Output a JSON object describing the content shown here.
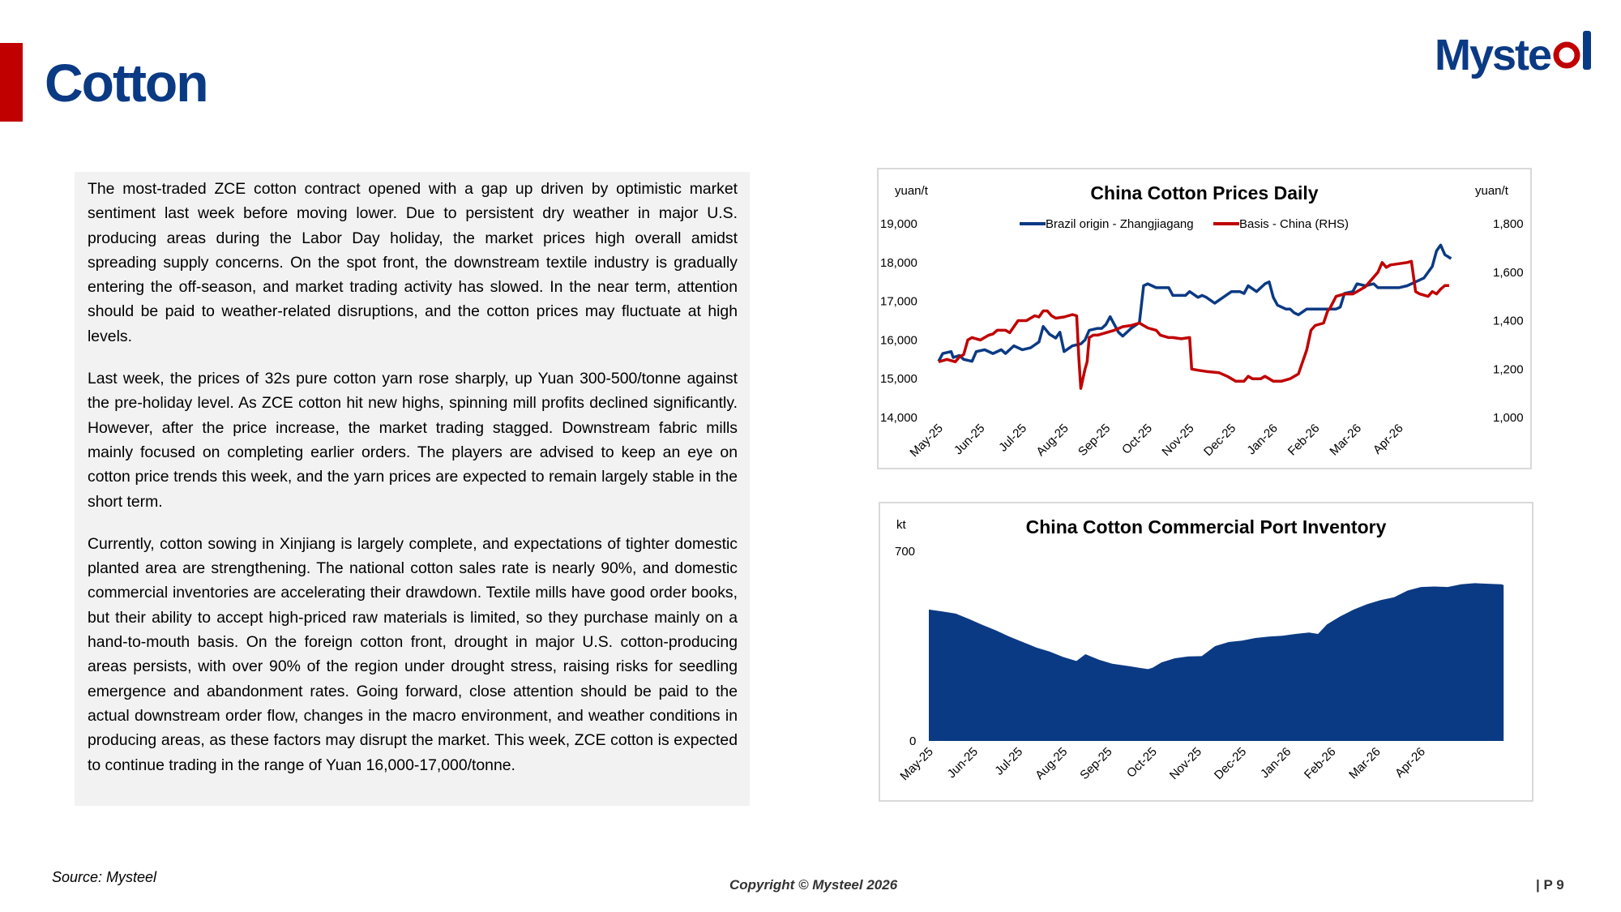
{
  "header": {
    "title": "Cotton",
    "logo_text": "Mysteel",
    "brand_color": "#0b3a84",
    "accent_color": "#c00000"
  },
  "commentary": {
    "paragraphs": [
      "The most-traded ZCE cotton contract opened with a gap up driven by optimistic market sentiment last week before moving lower. Due to persistent dry weather in major U.S. producing areas during the Labor Day holiday, the market prices high overall amidst spreading supply concerns. On the spot front, the downstream textile industry is gradually entering the off-season, and market trading activity has slowed. In the near term, attention should be paid to weather-related disruptions, and the cotton prices may fluctuate at high levels.",
      "Last week, the prices of 32s pure cotton yarn rose sharply, up Yuan 300-500/tonne against the pre-holiday level. As ZCE cotton hit new highs, spinning mill profits declined significantly. However, after the price increase, the market trading stagged. Downstream fabric mills mainly focused on completing earlier orders. The players are advised to keep an eye on cotton price trends this week, and the yarn prices are expected to remain largely stable in the short term.",
      "Currently, cotton sowing in Xinjiang is largely complete, and expectations of tighter domestic planted area are strengthening. The national cotton sales rate is nearly 90%, and domestic commercial inventories are accelerating their drawdown. Textile mills have good order books, but their ability to accept high-priced raw materials is limited, so they purchase mainly on a hand-to-mouth basis. On the foreign cotton front, drought in major U.S. cotton-producing areas persists, with over 90% of the region under drought stress, raising risks for seedling emergence and abandonment rates. Going forward, close attention should be paid to the actual downstream order flow, changes in the macro environment, and weather conditions in producing areas, as these factors may disrupt the market. This week, ZCE cotton is expected to continue trading in the range of Yuan 16,000-17,000/tonne."
    ]
  },
  "chart_data": [
    {
      "type": "line",
      "title": "China Cotton Prices Daily",
      "y_left_label": "yuan/t",
      "y_right_label": "yuan/t",
      "y_left_ticks": [
        "19,000",
        "18,000",
        "17,000",
        "16,000",
        "15,000",
        "14,000"
      ],
      "y_right_ticks": [
        "1,800",
        "1,600",
        "1,400",
        "1,200",
        "1,000"
      ],
      "ylim_left": [
        14000,
        19000
      ],
      "ylim_right": [
        1000,
        1800
      ],
      "x_labels": [
        "May-25",
        "Jun-25",
        "Jul-25",
        "Aug-25",
        "Sep-25",
        "Oct-25",
        "Nov-25",
        "Dec-25",
        "Jan-26",
        "Feb-26",
        "Mar-26",
        "Apr-26"
      ],
      "x_range": [
        0,
        12.9
      ],
      "legend_position": "top",
      "grid": false,
      "series": [
        {
          "name": "Brazil origin - Zhangjiagang",
          "color": "#0b3a84",
          "axis": "left",
          "points": [
            [
              0,
              15450
            ],
            [
              0.1,
              15650
            ],
            [
              0.3,
              15700
            ],
            [
              0.35,
              15550
            ],
            [
              0.5,
              15600
            ],
            [
              0.6,
              15500
            ],
            [
              0.8,
              15450
            ],
            [
              0.9,
              15700
            ],
            [
              1.1,
              15750
            ],
            [
              1.3,
              15650
            ],
            [
              1.5,
              15750
            ],
            [
              1.6,
              15650
            ],
            [
              1.8,
              15850
            ],
            [
              2.0,
              15750
            ],
            [
              2.2,
              15800
            ],
            [
              2.4,
              15950
            ],
            [
              2.5,
              16350
            ],
            [
              2.65,
              16150
            ],
            [
              2.8,
              16050
            ],
            [
              2.9,
              16200
            ],
            [
              3.0,
              15700
            ],
            [
              3.2,
              15850
            ],
            [
              3.4,
              15900
            ],
            [
              3.5,
              16000
            ],
            [
              3.6,
              16250
            ],
            [
              3.8,
              16300
            ],
            [
              3.9,
              16300
            ],
            [
              4.0,
              16400
            ],
            [
              4.1,
              16600
            ],
            [
              4.3,
              16200
            ],
            [
              4.4,
              16100
            ],
            [
              4.6,
              16300
            ],
            [
              4.8,
              16450
            ],
            [
              4.9,
              17400
            ],
            [
              5.0,
              17450
            ],
            [
              5.2,
              17350
            ],
            [
              5.5,
              17350
            ],
            [
              5.6,
              17150
            ],
            [
              5.9,
              17150
            ],
            [
              6.0,
              17250
            ],
            [
              6.2,
              17100
            ],
            [
              6.3,
              17150
            ],
            [
              6.4,
              17100
            ],
            [
              6.6,
              16950
            ],
            [
              6.8,
              17100
            ],
            [
              7.0,
              17250
            ],
            [
              7.2,
              17250
            ],
            [
              7.3,
              17200
            ],
            [
              7.4,
              17400
            ],
            [
              7.6,
              17250
            ],
            [
              7.8,
              17450
            ],
            [
              7.9,
              17500
            ],
            [
              8.0,
              17100
            ],
            [
              8.1,
              16900
            ],
            [
              8.3,
              16800
            ],
            [
              8.4,
              16800
            ],
            [
              8.5,
              16700
            ],
            [
              8.6,
              16650
            ],
            [
              8.8,
              16800
            ],
            [
              9.0,
              16800
            ],
            [
              9.3,
              16800
            ],
            [
              9.5,
              16800
            ],
            [
              9.6,
              16850
            ],
            [
              9.7,
              17200
            ],
            [
              9.9,
              17250
            ],
            [
              10.0,
              17450
            ],
            [
              10.2,
              17400
            ],
            [
              10.4,
              17450
            ],
            [
              10.5,
              17350
            ],
            [
              10.8,
              17350
            ],
            [
              11.0,
              17350
            ],
            [
              11.2,
              17400
            ],
            [
              11.4,
              17500
            ],
            [
              11.6,
              17600
            ],
            [
              11.8,
              17900
            ],
            [
              11.9,
              18300
            ],
            [
              12.0,
              18450
            ],
            [
              12.1,
              18200
            ],
            [
              12.25,
              18100
            ]
          ]
        },
        {
          "name": "Basis - China (RHS)",
          "color": "#c00000",
          "axis": "right",
          "points": [
            [
              0,
              1230
            ],
            [
              0.2,
              1240
            ],
            [
              0.4,
              1230
            ],
            [
              0.5,
              1250
            ],
            [
              0.6,
              1260
            ],
            [
              0.7,
              1320
            ],
            [
              0.8,
              1330
            ],
            [
              1.0,
              1320
            ],
            [
              1.2,
              1340
            ],
            [
              1.3,
              1345
            ],
            [
              1.4,
              1360
            ],
            [
              1.6,
              1360
            ],
            [
              1.7,
              1350
            ],
            [
              1.9,
              1400
            ],
            [
              2.1,
              1400
            ],
            [
              2.3,
              1420
            ],
            [
              2.4,
              1415
            ],
            [
              2.5,
              1440
            ],
            [
              2.6,
              1440
            ],
            [
              2.7,
              1420
            ],
            [
              2.8,
              1410
            ],
            [
              3.0,
              1415
            ],
            [
              3.2,
              1425
            ],
            [
              3.3,
              1420
            ],
            [
              3.35,
              1250
            ],
            [
              3.4,
              1120
            ],
            [
              3.5,
              1200
            ],
            [
              3.55,
              1230
            ],
            [
              3.6,
              1330
            ],
            [
              3.7,
              1340
            ],
            [
              3.8,
              1340
            ],
            [
              4.0,
              1350
            ],
            [
              4.2,
              1360
            ],
            [
              4.4,
              1375
            ],
            [
              4.6,
              1380
            ],
            [
              4.8,
              1390
            ],
            [
              5.0,
              1370
            ],
            [
              5.2,
              1360
            ],
            [
              5.3,
              1340
            ],
            [
              5.5,
              1330
            ],
            [
              5.6,
              1330
            ],
            [
              5.8,
              1325
            ],
            [
              6.0,
              1330
            ],
            [
              6.05,
              1200
            ],
            [
              6.2,
              1195
            ],
            [
              6.4,
              1190
            ],
            [
              6.7,
              1185
            ],
            [
              6.9,
              1170
            ],
            [
              7.0,
              1160
            ],
            [
              7.1,
              1150
            ],
            [
              7.3,
              1150
            ],
            [
              7.4,
              1170
            ],
            [
              7.5,
              1160
            ],
            [
              7.7,
              1160
            ],
            [
              7.8,
              1170
            ],
            [
              7.9,
              1160
            ],
            [
              8.0,
              1150
            ],
            [
              8.2,
              1150
            ],
            [
              8.4,
              1160
            ],
            [
              8.6,
              1180
            ],
            [
              8.7,
              1230
            ],
            [
              8.8,
              1280
            ],
            [
              8.9,
              1360
            ],
            [
              9.0,
              1380
            ],
            [
              9.2,
              1390
            ],
            [
              9.3,
              1440
            ],
            [
              9.35,
              1450
            ],
            [
              9.5,
              1500
            ],
            [
              9.7,
              1510
            ],
            [
              9.9,
              1510
            ],
            [
              10.0,
              1520
            ],
            [
              10.2,
              1540
            ],
            [
              10.3,
              1560
            ],
            [
              10.5,
              1600
            ],
            [
              10.6,
              1640
            ],
            [
              10.7,
              1620
            ],
            [
              10.8,
              1630
            ],
            [
              11.0,
              1635
            ],
            [
              11.2,
              1640
            ],
            [
              11.3,
              1645
            ],
            [
              11.4,
              1520
            ],
            [
              11.5,
              1510
            ],
            [
              11.7,
              1500
            ],
            [
              11.8,
              1520
            ],
            [
              11.9,
              1510
            ],
            [
              12.0,
              1530
            ],
            [
              12.1,
              1545
            ],
            [
              12.2,
              1545
            ]
          ]
        }
      ]
    },
    {
      "type": "area",
      "title": "China Cotton Commercial Port Inventory",
      "y_label": "kt",
      "y_ticks": [
        "700",
        "0"
      ],
      "ylim": [
        0,
        700
      ],
      "x_labels": [
        "May-25",
        "Jun-25",
        "Jul-25",
        "Aug-25",
        "Sep-25",
        "Oct-25",
        "Nov-25",
        "Dec-25",
        "Jan-26",
        "Feb-26",
        "Mar-26",
        "Apr-26"
      ],
      "x_range": [
        0,
        12.9
      ],
      "grid": false,
      "series": [
        {
          "name": "",
          "color": "#0b3a84",
          "points": [
            [
              0,
              485
            ],
            [
              0.3,
              478
            ],
            [
              0.6,
              470
            ],
            [
              0.9,
              450
            ],
            [
              1.2,
              428
            ],
            [
              1.5,
              408
            ],
            [
              1.8,
              385
            ],
            [
              2.1,
              365
            ],
            [
              2.4,
              345
            ],
            [
              2.7,
              330
            ],
            [
              3.0,
              310
            ],
            [
              3.3,
              295
            ],
            [
              3.5,
              320
            ],
            [
              3.8,
              300
            ],
            [
              4.1,
              285
            ],
            [
              4.4,
              278
            ],
            [
              4.7,
              270
            ],
            [
              4.9,
              265
            ],
            [
              5.0,
              270
            ],
            [
              5.2,
              290
            ],
            [
              5.5,
              305
            ],
            [
              5.8,
              312
            ],
            [
              6.1,
              313
            ],
            [
              6.4,
              350
            ],
            [
              6.7,
              365
            ],
            [
              7.0,
              370
            ],
            [
              7.3,
              380
            ],
            [
              7.6,
              385
            ],
            [
              7.9,
              388
            ],
            [
              8.2,
              395
            ],
            [
              8.5,
              400
            ],
            [
              8.7,
              395
            ],
            [
              8.9,
              430
            ],
            [
              9.2,
              460
            ],
            [
              9.5,
              485
            ],
            [
              9.8,
              505
            ],
            [
              10.1,
              520
            ],
            [
              10.4,
              530
            ],
            [
              10.7,
              555
            ],
            [
              11.0,
              568
            ],
            [
              11.3,
              570
            ],
            [
              11.6,
              568
            ],
            [
              11.9,
              578
            ],
            [
              12.2,
              582
            ],
            [
              12.5,
              580
            ],
            [
              12.8,
              578
            ],
            [
              12.85,
              575
            ]
          ]
        }
      ]
    }
  ],
  "footer": {
    "source": "Source: Mysteel",
    "copyright": "Copyright © Mysteel 2026",
    "page": "| P 9"
  }
}
